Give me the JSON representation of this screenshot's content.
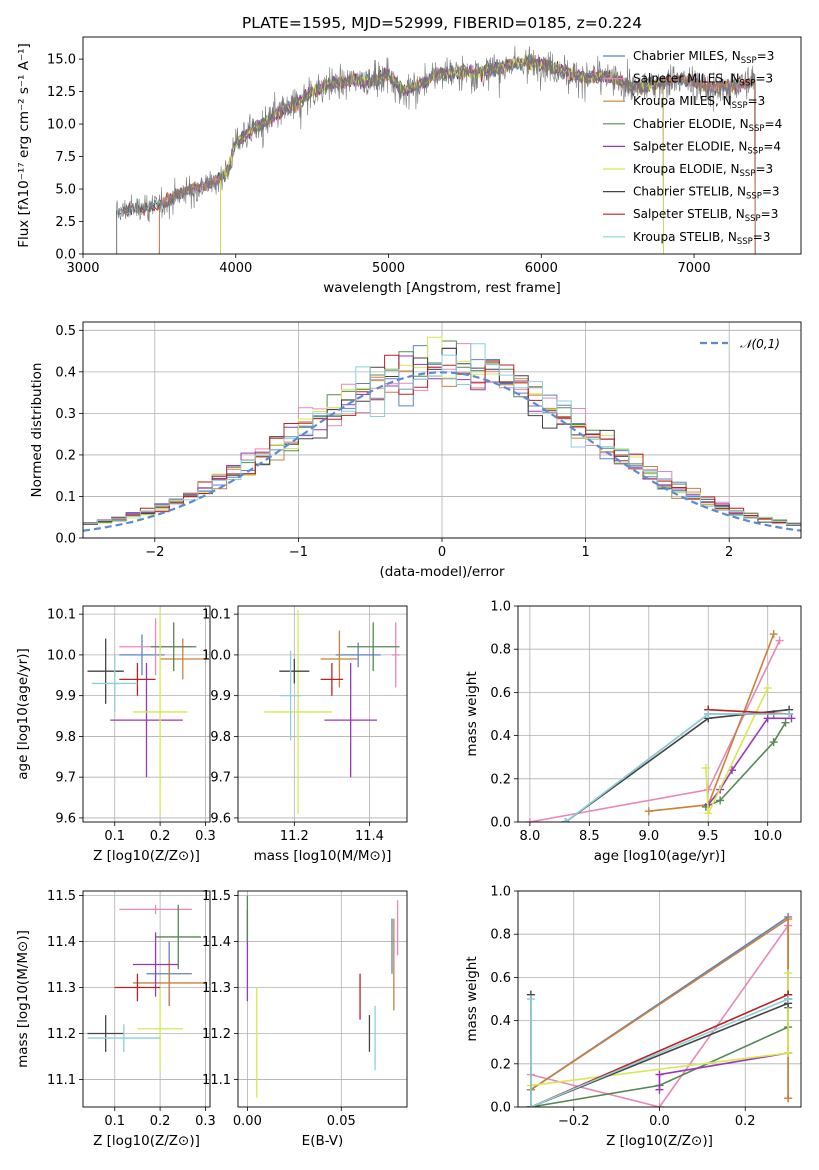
{
  "figure_title": "PLATE=1595, MJD=52999, FIBERID=0185, z=0.224",
  "models": [
    {
      "name": "Chabrier MILES",
      "nssp": "3",
      "color": "#5d82c8"
    },
    {
      "name": "Salpeter MILES",
      "nssp": "3",
      "color": "#e888b8"
    },
    {
      "name": "Kroupa MILES",
      "nssp": "3",
      "color": "#c8823c"
    },
    {
      "name": "Chabrier ELODIE",
      "nssp": "4",
      "color": "#558855"
    },
    {
      "name": "Salpeter ELODIE",
      "nssp": "4",
      "color": "#9838b8"
    },
    {
      "name": "Kroupa ELODIE",
      "nssp": "3",
      "color": "#d8e850"
    },
    {
      "name": "Chabrier STELIB",
      "nssp": "3",
      "color": "#444444"
    },
    {
      "name": "Salpeter STELIB",
      "nssp": "3",
      "color": "#bb2222"
    },
    {
      "name": "Kroupa STELIB",
      "nssp": "3",
      "color": "#8cd0d8"
    }
  ],
  "chart_data": [
    {
      "id": "spectrum",
      "type": "line",
      "xlabel": "wavelength [Angstrom, rest frame]",
      "ylabel": "Flux [fλ10⁻¹⁷ erg cm⁻² s⁻¹ A⁻¹]",
      "xlim": [
        3000,
        7700
      ],
      "ylim": [
        0,
        16.7
      ],
      "xticks": [
        3000,
        4000,
        5000,
        6000,
        7000
      ],
      "yticks": [
        0.0,
        2.5,
        5.0,
        7.5,
        10.0,
        12.5,
        15.0
      ],
      "continuum": {
        "x": [
          3220,
          3300,
          3400,
          3500,
          3600,
          3700,
          3800,
          3900,
          3950,
          4000,
          4100,
          4200,
          4300,
          4400,
          4500,
          4600,
          4700,
          4800,
          4900,
          5000,
          5100,
          5200,
          5300,
          5400,
          5500,
          5600,
          5700,
          5800,
          5900,
          6000,
          6100,
          6200,
          6300,
          6400,
          6500,
          6600,
          6700,
          6800,
          6900,
          7000,
          7100,
          7200,
          7300,
          7400
        ],
        "y": [
          3.2,
          3.5,
          3.6,
          3.8,
          4.5,
          5.0,
          5.3,
          5.8,
          6.5,
          8.6,
          9.5,
          10.2,
          11.0,
          11.6,
          12.5,
          13.0,
          13.2,
          13.5,
          13.3,
          13.9,
          12.5,
          13.0,
          13.8,
          14.0,
          14.0,
          14.0,
          14.2,
          14.6,
          14.8,
          14.6,
          14.3,
          13.9,
          13.5,
          13.7,
          13.4,
          12.8,
          13.0,
          13.3,
          13.5,
          13.2,
          12.8,
          12.9,
          13.0,
          13.2
        ]
      },
      "model_ranges": [
        [
          3500,
          7400
        ],
        [
          3500,
          7400
        ],
        [
          3500,
          7400
        ],
        [
          3900,
          6800
        ],
        [
          3900,
          6800
        ],
        [
          3900,
          6800
        ],
        [
          3220,
          7400
        ],
        [
          3220,
          7400
        ],
        [
          3220,
          7400
        ]
      ]
    },
    {
      "id": "residuals",
      "type": "histogram",
      "xlabel": "(data-model)/error",
      "ylabel": "Normed distribution",
      "xlim": [
        -2.5,
        2.5
      ],
      "ylim": [
        0,
        0.52
      ],
      "xticks": [
        -2,
        -1,
        0,
        1,
        2
      ],
      "yticks": [
        0.0,
        0.1,
        0.2,
        0.3,
        0.4,
        0.5
      ],
      "bin_width": 0.1,
      "gaussian_label": "𝒩(0,1)"
    },
    {
      "id": "age-vs-Z",
      "type": "errorbar",
      "xlabel": "Z [log10(Z/Z⊙)]",
      "ylabel": "age [log10(age/yr)]",
      "xlim": [
        0.03,
        0.31
      ],
      "ylim": [
        9.59,
        10.12
      ],
      "xticks": [
        0.1,
        0.2,
        0.3
      ],
      "yticks": [
        9.6,
        9.7,
        9.8,
        9.9,
        10.0,
        10.1
      ],
      "points": [
        {
          "x": 0.16,
          "xerr": 0.05,
          "y": 10.0,
          "yerr": 0.05,
          "m": 0
        },
        {
          "x": 0.19,
          "xerr": 0.08,
          "y": 10.02,
          "yerr": 0.07,
          "m": 1
        },
        {
          "x": 0.25,
          "xerr": 0.05,
          "y": 9.99,
          "yerr": 0.05,
          "m": 2
        },
        {
          "x": 0.23,
          "xerr": 0.05,
          "y": 10.02,
          "yerr": 0.06,
          "m": 3
        },
        {
          "x": 0.17,
          "xerr": 0.08,
          "y": 9.84,
          "yerr": 0.14,
          "m": 4
        },
        {
          "x": 0.2,
          "xerr": 0.06,
          "y": 9.86,
          "yerr": 0.25,
          "m": 5
        },
        {
          "x": 0.08,
          "xerr": 0.04,
          "y": 9.96,
          "yerr": 0.08,
          "m": 6
        },
        {
          "x": 0.15,
          "xerr": 0.04,
          "y": 9.94,
          "yerr": 0.04,
          "m": 7
        },
        {
          "x": 0.1,
          "xerr": 0.05,
          "y": 9.93,
          "yerr": 0.07,
          "m": 8
        }
      ]
    },
    {
      "id": "age-vs-mass",
      "type": "errorbar",
      "xlabel": "mass [log10(M/M⊙)]",
      "xlim": [
        11.05,
        11.5
      ],
      "ylim": [
        9.59,
        10.12
      ],
      "xticks": [
        11.2,
        11.4
      ],
      "yticks": [
        9.6,
        9.7,
        9.8,
        9.9,
        10.0,
        10.1
      ],
      "points": [
        {
          "x": 11.37,
          "xerr": 0.06,
          "y": 10.0,
          "yerr": 0.03,
          "m": 0
        },
        {
          "x": 11.47,
          "xerr": 0.01,
          "y": 10.0,
          "yerr": 0.08,
          "m": 1
        },
        {
          "x": 11.32,
          "xerr": 0.05,
          "y": 9.99,
          "yerr": 0.07,
          "m": 2
        },
        {
          "x": 11.41,
          "xerr": 0.07,
          "y": 10.02,
          "yerr": 0.06,
          "m": 3
        },
        {
          "x": 11.35,
          "xerr": 0.07,
          "y": 9.84,
          "yerr": 0.14,
          "m": 4
        },
        {
          "x": 11.21,
          "xerr": 0.09,
          "y": 9.86,
          "yerr": 0.25,
          "m": 5
        },
        {
          "x": 11.2,
          "xerr": 0.04,
          "y": 9.96,
          "yerr": 0.03,
          "m": 6
        },
        {
          "x": 11.3,
          "xerr": 0.03,
          "y": 9.94,
          "yerr": 0.04,
          "m": 7
        },
        {
          "x": 11.19,
          "xerr": 0.03,
          "y": 9.9,
          "yerr": 0.11,
          "m": 8
        }
      ]
    },
    {
      "id": "mass-weight-vs-age",
      "type": "line",
      "xlabel": "age [log10(age/yr)]",
      "ylabel": "mass weight",
      "xlim": [
        7.9,
        10.28
      ],
      "ylim": [
        0,
        1
      ],
      "xticks": [
        8.0,
        8.5,
        9.0,
        9.5,
        10.0
      ],
      "yticks": [
        0.0,
        0.2,
        0.4,
        0.6,
        0.8,
        1.0
      ],
      "series": [
        {
          "m": 0,
          "x": [
            8.3,
            9.5,
            10.05
          ],
          "y": [
            0.0,
            0.5,
            0.5
          ]
        },
        {
          "m": 1,
          "x": [
            8.0,
            9.5,
            10.1
          ],
          "y": [
            0.0,
            0.15,
            0.84
          ]
        },
        {
          "m": 2,
          "x": [
            9.0,
            9.5,
            10.05
          ],
          "y": [
            0.05,
            0.08,
            0.87
          ]
        },
        {
          "m": 3,
          "x": [
            9.48,
            9.6,
            10.05,
            10.15
          ],
          "y": [
            0.07,
            0.1,
            0.37,
            0.46
          ]
        },
        {
          "m": 4,
          "x": [
            9.5,
            9.6,
            9.7,
            10.0,
            10.2
          ],
          "y": [
            0.08,
            0.15,
            0.24,
            0.48,
            0.48
          ]
        },
        {
          "m": 5,
          "x": [
            9.48,
            9.5,
            10.0
          ],
          "y": [
            0.25,
            0.04,
            0.62
          ]
        },
        {
          "m": 6,
          "x": [
            8.3,
            9.5,
            10.18
          ],
          "y": [
            0.0,
            0.48,
            0.52
          ]
        },
        {
          "m": 7,
          "x": [
            9.5,
            9.5,
            10.18
          ],
          "y": [
            0.52,
            0.52,
            0.5
          ]
        },
        {
          "m": 8,
          "x": [
            8.3,
            9.5,
            10.18
          ],
          "y": [
            0.0,
            0.5,
            0.5
          ]
        }
      ]
    },
    {
      "id": "mass-vs-Z",
      "type": "errorbar",
      "xlabel": "Z [log10(Z/Z⊙)]",
      "ylabel": "mass [log10(M/M⊙)]",
      "xlim": [
        0.03,
        0.31
      ],
      "ylim": [
        11.04,
        11.51
      ],
      "xticks": [
        0.1,
        0.2,
        0.3
      ],
      "yticks": [
        11.1,
        11.2,
        11.3,
        11.4,
        11.5
      ],
      "points": [
        {
          "x": 0.22,
          "xerr": 0.05,
          "y": 11.33,
          "yerr": 0.07,
          "m": 0
        },
        {
          "x": 0.19,
          "xerr": 0.08,
          "y": 11.47,
          "yerr": 0.01,
          "m": 1
        },
        {
          "x": 0.22,
          "xerr": 0.08,
          "y": 11.31,
          "yerr": 0.05,
          "m": 2
        },
        {
          "x": 0.24,
          "xerr": 0.05,
          "y": 11.41,
          "yerr": 0.07,
          "m": 3
        },
        {
          "x": 0.19,
          "xerr": 0.05,
          "y": 11.35,
          "yerr": 0.07,
          "m": 4
        },
        {
          "x": 0.2,
          "xerr": 0.05,
          "y": 11.21,
          "yerr": 0.09,
          "m": 5
        },
        {
          "x": 0.08,
          "xerr": 0.04,
          "y": 11.2,
          "yerr": 0.04,
          "m": 6
        },
        {
          "x": 0.15,
          "xerr": 0.05,
          "y": 11.3,
          "yerr": 0.03,
          "m": 7
        },
        {
          "x": 0.12,
          "xerr": 0.08,
          "y": 11.19,
          "yerr": 0.03,
          "m": 8
        }
      ]
    },
    {
      "id": "mass-vs-EBV",
      "type": "errorbar",
      "xlabel": "E(B-V)",
      "xlim": [
        -0.005,
        0.085
      ],
      "ylim": [
        11.04,
        11.51
      ],
      "xticks": [
        0.0,
        0.05
      ],
      "yticks": [
        11.1,
        11.2,
        11.3,
        11.4,
        11.5
      ],
      "points": [
        {
          "x": 0.0,
          "y": 11.37,
          "yerr": 0.1,
          "m": 4
        },
        {
          "x": 0.005,
          "y": 11.18,
          "yerr": 0.12,
          "m": 5
        },
        {
          "x": 0.06,
          "y": 11.28,
          "yerr": 0.05,
          "m": 7
        },
        {
          "x": 0.065,
          "y": 11.2,
          "yerr": 0.04,
          "m": 6
        },
        {
          "x": 0.068,
          "y": 11.19,
          "yerr": 0.07,
          "m": 8
        },
        {
          "x": 0.078,
          "y": 11.35,
          "yerr": 0.1,
          "m": 2
        },
        {
          "x": 0.08,
          "y": 11.43,
          "yerr": 0.06,
          "m": 1
        },
        {
          "x": 0.077,
          "y": 11.39,
          "yerr": 0.06,
          "m": 0
        },
        {
          "x": 0.0,
          "y": 11.45,
          "yerr": 0.05,
          "m": 3
        }
      ]
    },
    {
      "id": "mass-weight-vs-Z",
      "type": "line",
      "xlabel": "Z [log10(Z/Z⊙)]",
      "ylabel": "mass weight",
      "xlim": [
        -0.33,
        0.33
      ],
      "ylim": [
        0,
        1
      ],
      "xticks": [
        -0.2,
        0.0,
        0.2
      ],
      "yticks": [
        0.0,
        0.2,
        0.4,
        0.6,
        0.8,
        1.0
      ],
      "series": [
        {
          "m": 0,
          "x": [
            -0.3,
            0.3,
            0.3
          ],
          "y": [
            0.08,
            0.88,
            0.5
          ]
        },
        {
          "m": 1,
          "x": [
            -0.3,
            0.0,
            0.3,
            0.3
          ],
          "y": [
            0.15,
            0.0,
            0.84,
            0.04
          ]
        },
        {
          "m": 2,
          "x": [
            -0.3,
            0.3,
            0.3
          ],
          "y": [
            0.08,
            0.87,
            0.04
          ]
        },
        {
          "m": 3,
          "x": [
            -0.3,
            0.0,
            0.3,
            0.3
          ],
          "y": [
            0.0,
            0.1,
            0.37,
            0.46
          ]
        },
        {
          "m": 4,
          "x": [
            0.0,
            0.0,
            0.3
          ],
          "y": [
            0.08,
            0.15,
            0.25
          ]
        },
        {
          "m": 5,
          "x": [
            -0.3,
            0.3,
            0.3
          ],
          "y": [
            0.1,
            0.25,
            0.62
          ]
        },
        {
          "m": 6,
          "x": [
            -0.3,
            -0.3,
            0.3,
            0.3
          ],
          "y": [
            0.52,
            0.0,
            0.48,
            0.52
          ]
        },
        {
          "m": 7,
          "x": [
            -0.3,
            0.3,
            0.3
          ],
          "y": [
            0.0,
            0.52,
            0.5
          ]
        },
        {
          "m": 8,
          "x": [
            -0.3,
            -0.3,
            0.3,
            0.3
          ],
          "y": [
            0.5,
            0.0,
            0.5,
            0.5
          ]
        }
      ]
    }
  ]
}
